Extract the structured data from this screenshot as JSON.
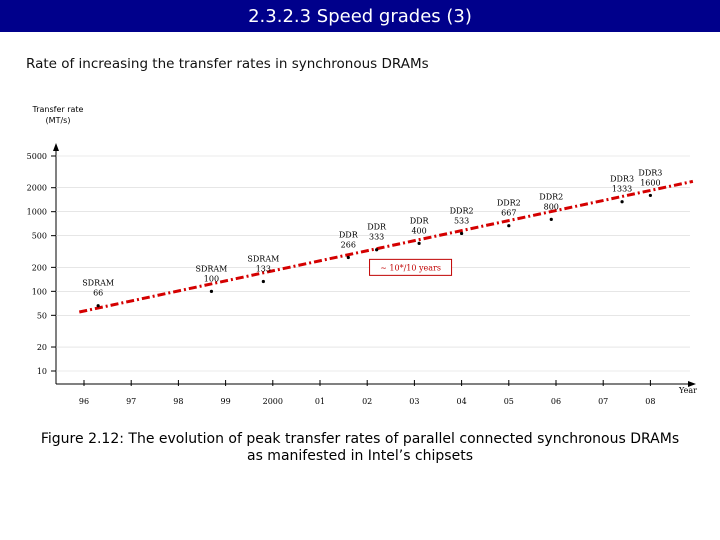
{
  "slide": {
    "title": "2.3.2.3 Speed grades (3)",
    "subtitle": "Rate of increasing the transfer rates in synchronous DRAMs",
    "caption_line1": "Figure 2.12: The evolution of peak transfer rates of parallel connected synchronous DRAMs",
    "caption_line2": "as manifested in Intel’s chipsets"
  },
  "colors": {
    "title_bg": "#00008b",
    "trend": "#d40000",
    "trend_box": "#c00000"
  },
  "chart_data": {
    "type": "scatter",
    "title": "",
    "ylabel": "Transfer rate (MT/s)",
    "ylabel_line1": "Transfer rate",
    "ylabel_line2": "(MT/s)",
    "xlabel": "Year",
    "yscale": "log",
    "ylim": [
      10,
      5000
    ],
    "xlim": [
      1995.5,
      2009
    ],
    "y_ticks": [
      {
        "value": 5000,
        "label": "5000"
      },
      {
        "value": 2000,
        "label": "2000"
      },
      {
        "value": 1000,
        "label": "1000"
      },
      {
        "value": 500,
        "label": "500"
      },
      {
        "value": 200,
        "label": "200"
      },
      {
        "value": 100,
        "label": "100"
      },
      {
        "value": 50,
        "label": "50"
      },
      {
        "value": 20,
        "label": "20"
      },
      {
        "value": 10,
        "label": "10"
      }
    ],
    "x_ticks": [
      {
        "value": 1996,
        "label": "96"
      },
      {
        "value": 1997,
        "label": "97"
      },
      {
        "value": 1998,
        "label": "98"
      },
      {
        "value": 1999,
        "label": "99"
      },
      {
        "value": 2000,
        "label": "2000"
      },
      {
        "value": 2001,
        "label": "01"
      },
      {
        "value": 2002,
        "label": "02"
      },
      {
        "value": 2003,
        "label": "03"
      },
      {
        "value": 2004,
        "label": "04"
      },
      {
        "value": 2005,
        "label": "05"
      },
      {
        "value": 2006,
        "label": "06"
      },
      {
        "value": 2007,
        "label": "07"
      },
      {
        "value": 2008,
        "label": "08"
      }
    ],
    "points": [
      {
        "name": "SDRAM 66",
        "line1": "SDRAM",
        "line2": "66",
        "x": 1996.3,
        "y": 66
      },
      {
        "name": "SDRAM 100",
        "line1": "SDRAM",
        "line2": "100",
        "x": 1998.7,
        "y": 100
      },
      {
        "name": "SDRAM 133",
        "line1": "SDRAM",
        "line2": "133",
        "x": 1999.8,
        "y": 133
      },
      {
        "name": "DDR 266",
        "line1": "DDR",
        "line2": "266",
        "x": 2001.6,
        "y": 266
      },
      {
        "name": "DDR 333",
        "line1": "DDR",
        "line2": "333",
        "x": 2002.2,
        "y": 333
      },
      {
        "name": "DDR 400",
        "line1": "DDR",
        "line2": "400",
        "x": 2003.1,
        "y": 400
      },
      {
        "name": "DDR2 533",
        "line1": "DDR2",
        "line2": "533",
        "x": 2004.0,
        "y": 533
      },
      {
        "name": "DDR2 667",
        "line1": "DDR2",
        "line2": "667",
        "x": 2005.0,
        "y": 667
      },
      {
        "name": "DDR2 800",
        "line1": "DDR2",
        "line2": "800",
        "x": 2005.9,
        "y": 800
      },
      {
        "name": "DDR3 1333",
        "line1": "DDR3",
        "line2": "1333",
        "x": 2007.4,
        "y": 1333
      },
      {
        "name": "DDR3 1600",
        "line1": "DDR3",
        "line2": "1600",
        "x": 2008.0,
        "y": 1600
      }
    ],
    "trend": {
      "label": "~ 10*/10 years",
      "x_start": 1995.9,
      "y_start": 55,
      "x_end": 2008.9,
      "y_end": 2400
    }
  }
}
